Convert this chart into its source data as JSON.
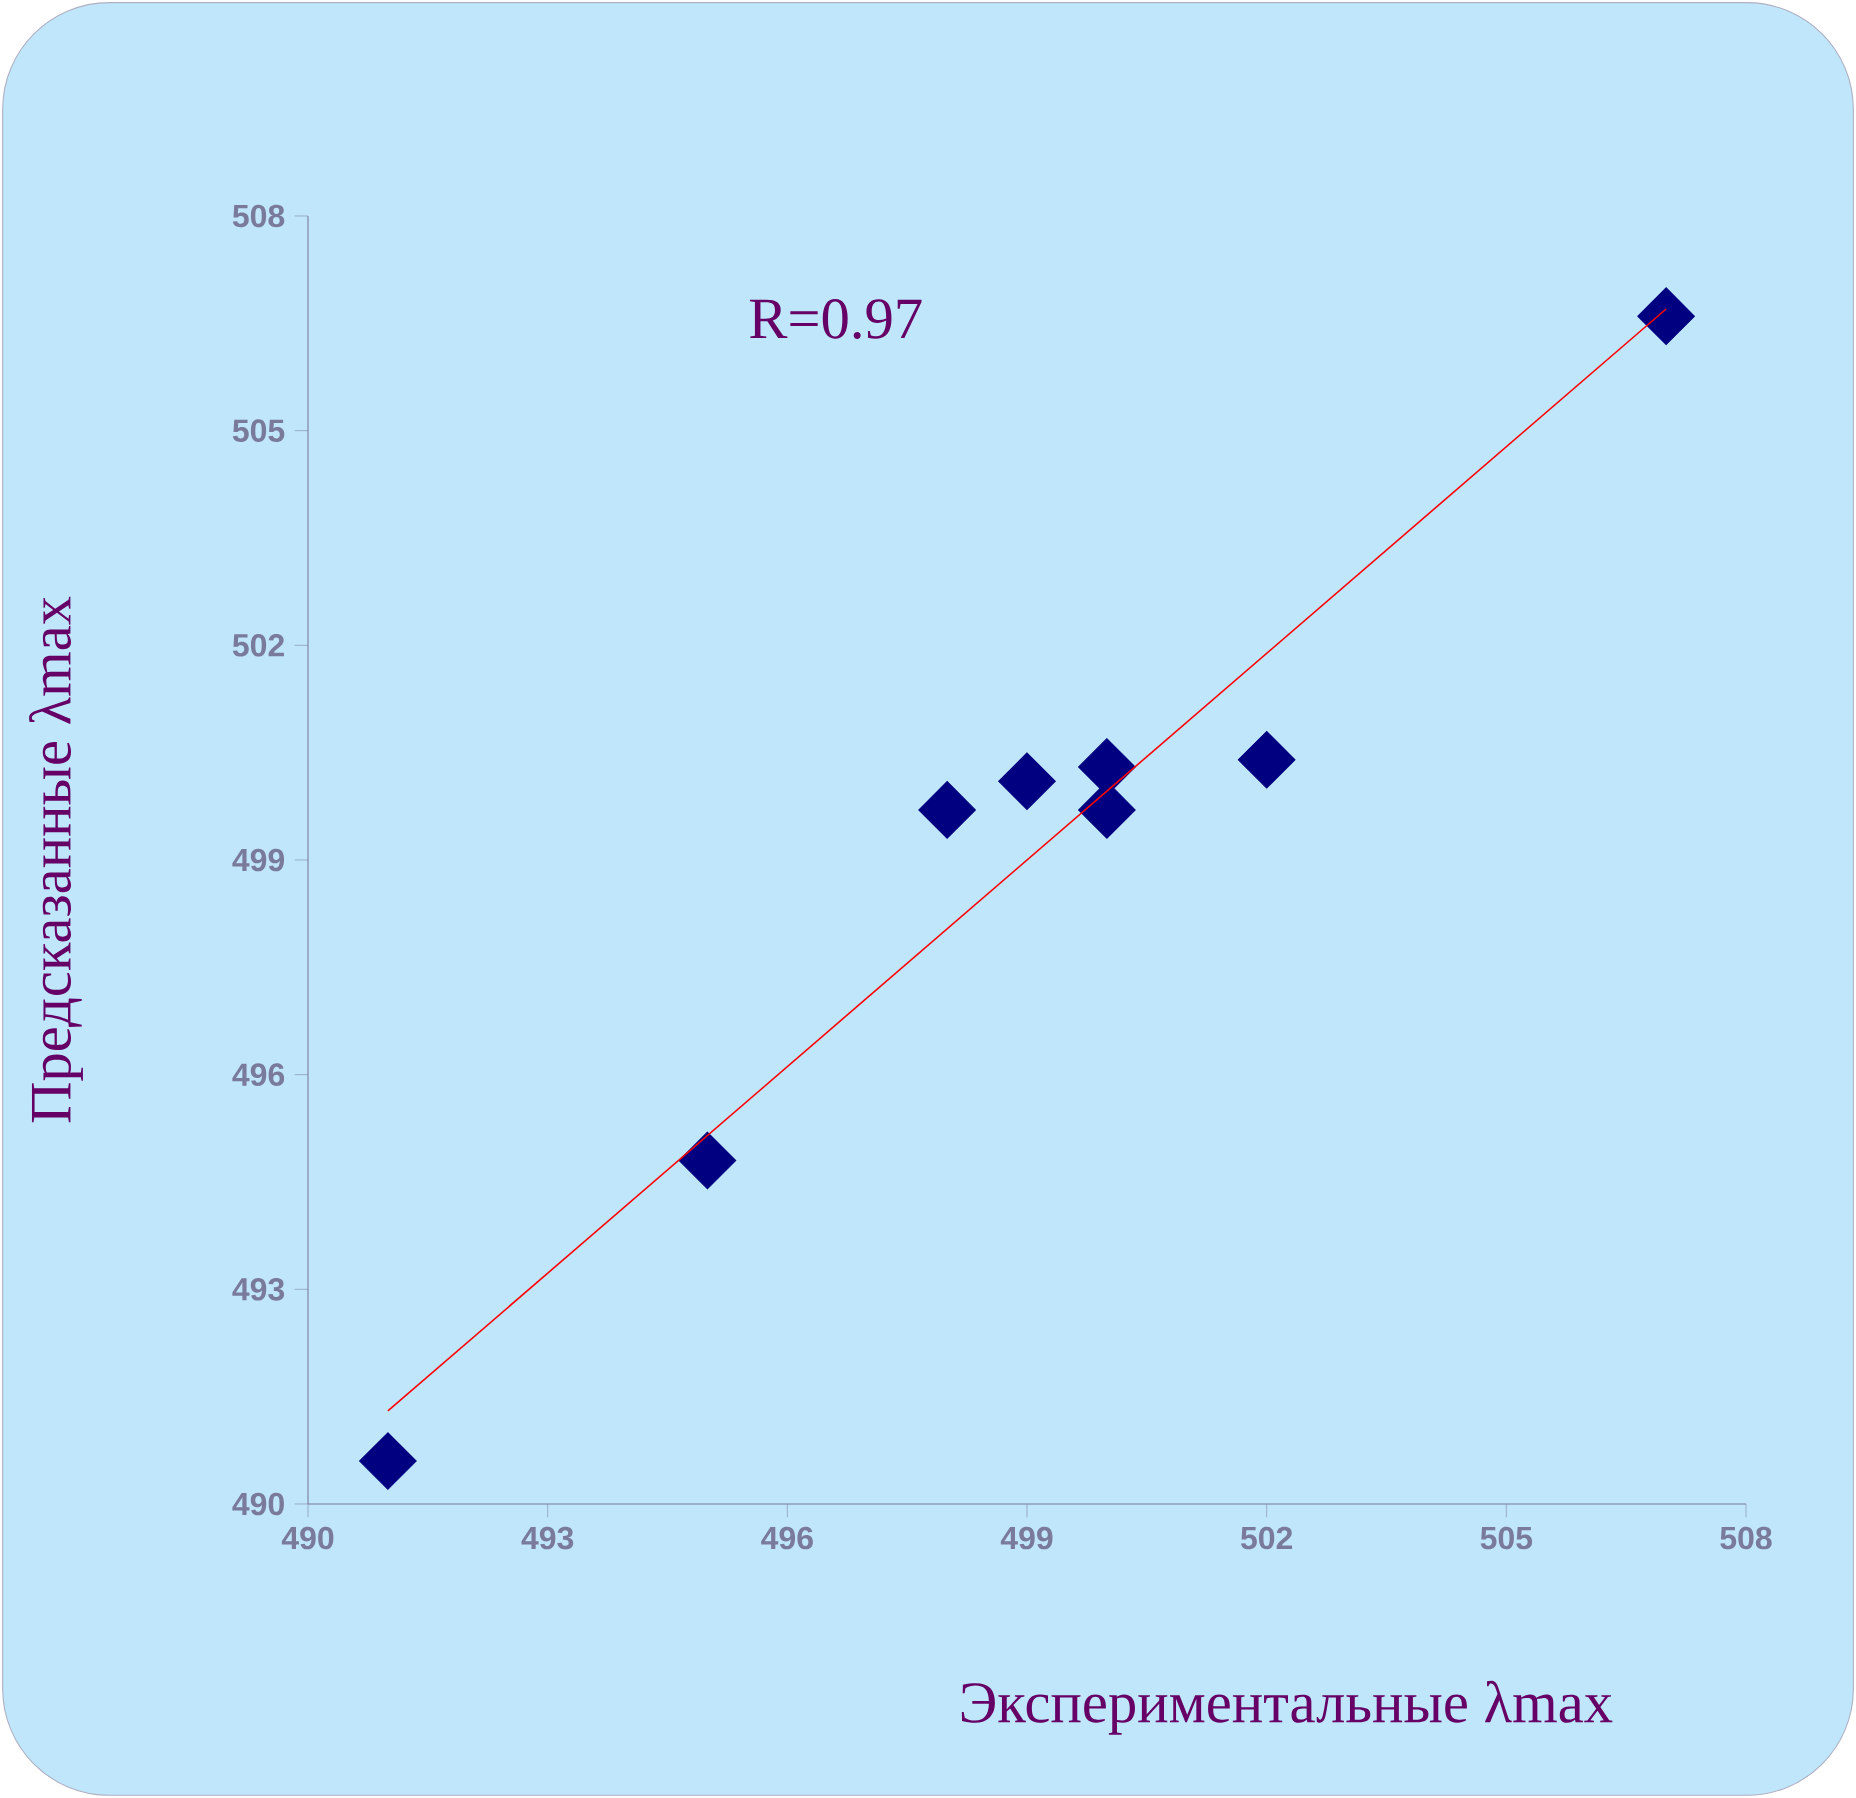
{
  "chart_data": {
    "type": "scatter",
    "xlabel": "Экспериментальные λmax",
    "ylabel": "Предсказанные λmax",
    "annotations": [
      "R=0.97"
    ],
    "xlim": [
      490,
      508
    ],
    "ylim": [
      490,
      508
    ],
    "xticks": [
      490,
      493,
      496,
      499,
      502,
      505,
      508
    ],
    "yticks": [
      490,
      493,
      496,
      499,
      502,
      505,
      508
    ],
    "marker": "diamond",
    "series": [
      {
        "type": "scatter",
        "color": "#000080",
        "x": [
          491,
          495,
          498,
          499,
          500,
          500,
          502,
          507
        ],
        "values": [
          490.6,
          494.8,
          499.7,
          500.1,
          500.3,
          499.7,
          500.4,
          506.6
        ]
      },
      {
        "type": "line",
        "color": "#ff0000",
        "marker": "none",
        "x": [
          491,
          507
        ],
        "values": [
          491.3,
          506.7
        ]
      }
    ]
  }
}
